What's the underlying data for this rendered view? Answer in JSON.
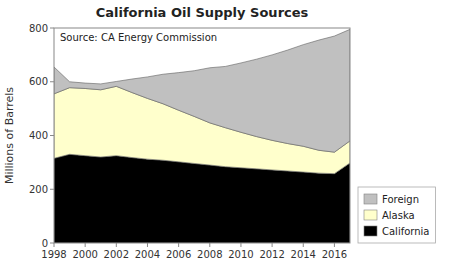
{
  "chart_data": {
    "type": "area",
    "stacked": true,
    "title": "California Oil Supply Sources",
    "y_label": "Millions of Barrels",
    "annotation": "Source: CA Energy Commission",
    "x": [
      1998,
      1999,
      2000,
      2001,
      2002,
      2003,
      2004,
      2005,
      2006,
      2007,
      2008,
      2009,
      2010,
      2011,
      2012,
      2013,
      2014,
      2015,
      2016,
      2017
    ],
    "series": [
      {
        "name": "California",
        "color": "#000000",
        "values": [
          315,
          330,
          325,
          320,
          325,
          318,
          312,
          308,
          302,
          296,
          290,
          284,
          280,
          276,
          272,
          268,
          264,
          260,
          258,
          298
        ]
      },
      {
        "name": "Alaska",
        "color": "#ffffcc",
        "values": [
          240,
          248,
          250,
          250,
          258,
          242,
          226,
          210,
          192,
          175,
          157,
          145,
          132,
          120,
          110,
          102,
          96,
          85,
          80,
          82
        ]
      },
      {
        "name": "Foreign",
        "color": "#c0c0c0",
        "values": [
          100,
          22,
          20,
          22,
          18,
          50,
          80,
          110,
          140,
          170,
          205,
          228,
          258,
          288,
          318,
          348,
          378,
          410,
          432,
          415
        ]
      }
    ],
    "xlim": [
      1998,
      2017
    ],
    "xticks": [
      1998,
      2000,
      2002,
      2004,
      2006,
      2008,
      2010,
      2012,
      2014,
      2016
    ],
    "ylim": [
      0,
      800
    ],
    "yticks": [
      0,
      200,
      400,
      600,
      800
    ],
    "legend": "lower right",
    "grid": false
  }
}
